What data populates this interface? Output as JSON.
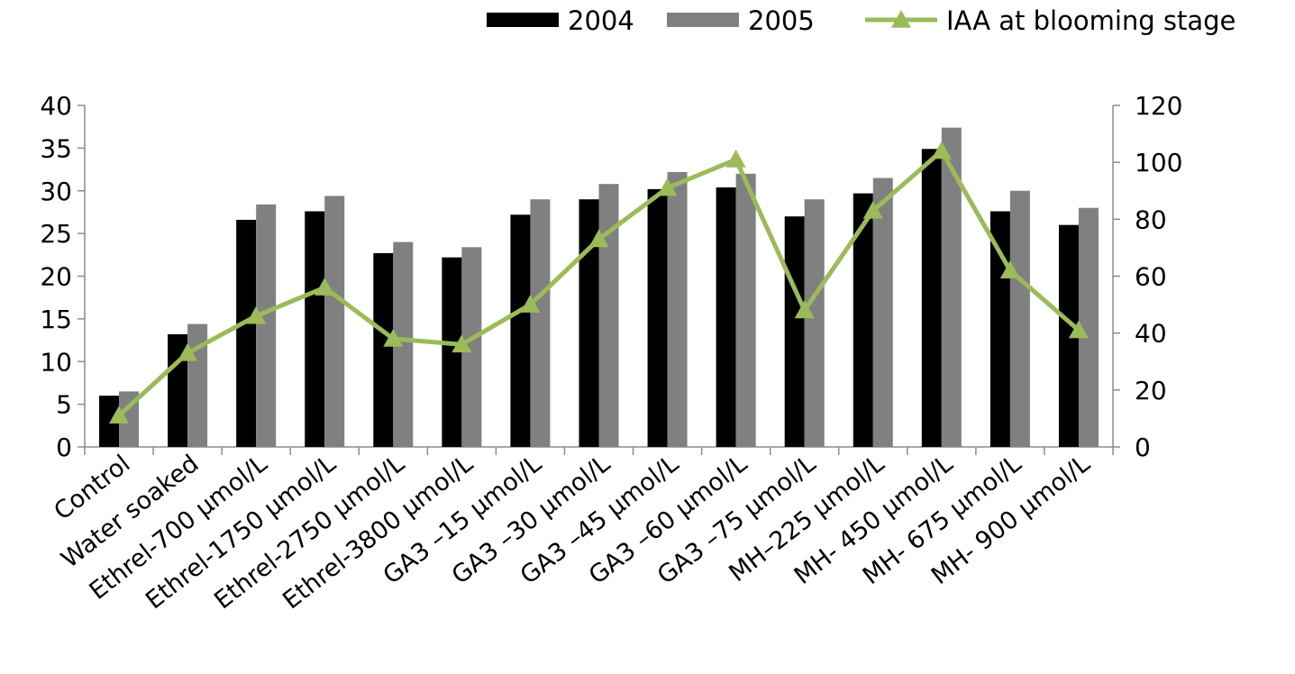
{
  "chart_data": {
    "type": "bar",
    "categories": [
      "Control",
      "Water soaked",
      "Ethrel-700  µmol/L",
      "Ethrel-1750 µmol/L",
      "Ethrel-2750 µmol/L",
      "Ethrel-3800 µmol/L",
      "GA3 –15     µmol/L",
      "GA3 –30     µmol/L",
      "GA3 –45     µmol/L",
      "GA3 –60     µmol/L",
      "GA3 –75     µmol/L",
      "MH–225     µmol/L",
      "MH- 450    µmol/L",
      "MH- 675    µmol/L",
      "MH- 900    µmol/L"
    ],
    "series": [
      {
        "name": "2004",
        "kind": "bar",
        "axis": "left",
        "color": "#000000",
        "values": [
          6.0,
          13.2,
          26.6,
          27.6,
          22.7,
          22.2,
          27.2,
          29.0,
          30.2,
          30.4,
          27.0,
          29.7,
          34.9,
          27.6,
          26.0
        ]
      },
      {
        "name": "2005",
        "kind": "bar",
        "axis": "left",
        "color": "#808080",
        "values": [
          6.5,
          14.4,
          28.4,
          29.4,
          24.0,
          23.4,
          29.0,
          30.8,
          32.2,
          32.0,
          29.0,
          31.5,
          37.4,
          30.0,
          28.0
        ]
      },
      {
        "name": "IAA at blooming stage",
        "kind": "line",
        "axis": "right",
        "color": "#9BBB59",
        "marker": "triangle",
        "values": [
          11,
          33,
          46,
          56,
          38,
          36,
          50,
          73,
          91,
          101,
          48,
          83,
          104,
          62,
          41
        ]
      }
    ],
    "y_left": {
      "min": 0,
      "max": 40,
      "ticks": [
        0,
        5,
        10,
        15,
        20,
        25,
        30,
        35,
        40
      ]
    },
    "y_right": {
      "min": 0,
      "max": 120,
      "ticks": [
        0,
        20,
        40,
        60,
        80,
        100,
        120
      ]
    },
    "title": "",
    "xlabel": "",
    "ylabel": "",
    "legend_position": "top-right",
    "grid": false
  }
}
